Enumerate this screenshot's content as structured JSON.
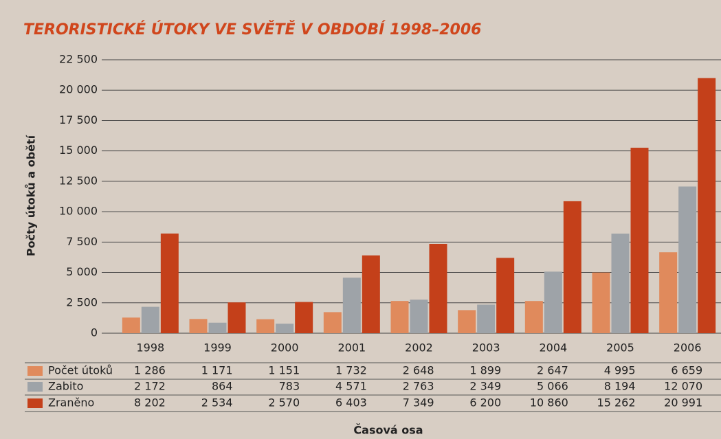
{
  "chart_data": {
    "type": "bar",
    "title": "TERORISTICKÉ ÚTOKY VE SVĚTĚ V OBDOBÍ 1998–2006",
    "y_label": "Počty útoků a obětí",
    "x_label": "Časová osa",
    "categories": [
      "1998",
      "1999",
      "2000",
      "2001",
      "2002",
      "2003",
      "2004",
      "2005",
      "2006"
    ],
    "series": [
      {
        "name": "Počet útoků",
        "color": "#e08a5c",
        "values": [
          1286,
          1171,
          1151,
          1732,
          2648,
          1899,
          2647,
          4995,
          6659
        ],
        "value_labels": [
          "1 286",
          "1 171",
          "1 151",
          "1 732",
          "2 648",
          "1 899",
          "2 647",
          "4 995",
          "6 659"
        ]
      },
      {
        "name": "Zabito",
        "color": "#9ea3a8",
        "values": [
          2172,
          864,
          783,
          4571,
          2763,
          2349,
          5066,
          8194,
          12070
        ],
        "value_labels": [
          "2 172",
          "864",
          "783",
          "4 571",
          "2 763",
          "2 349",
          "5 066",
          "8 194",
          "12 070"
        ]
      },
      {
        "name": "Zraněno",
        "color": "#c4401a",
        "values": [
          8202,
          2534,
          2570,
          6403,
          7349,
          6200,
          10860,
          15262,
          20991
        ],
        "value_labels": [
          "8 202",
          "2 534",
          "2 570",
          "6 403",
          "7 349",
          "6 200",
          "10 860",
          "15 262",
          "20 991"
        ]
      }
    ],
    "ylim": [
      0,
      22500
    ],
    "yticks": [
      0,
      {
        "value": 2500,
        "label": "2 500"
      },
      {
        "value": 5000,
        "label": "5 000"
      },
      {
        "value": 7500,
        "label": "7 500"
      },
      {
        "value": 10000,
        "label": "10 000"
      },
      {
        "value": 12500,
        "label": "12 500"
      },
      {
        "value": 15000,
        "label": "15 000"
      },
      {
        "value": 17500,
        "label": "17 500"
      },
      {
        "value": 20000,
        "label": "20 000"
      },
      {
        "value": 22500,
        "label": "22 500"
      }
    ],
    "grid": true
  }
}
